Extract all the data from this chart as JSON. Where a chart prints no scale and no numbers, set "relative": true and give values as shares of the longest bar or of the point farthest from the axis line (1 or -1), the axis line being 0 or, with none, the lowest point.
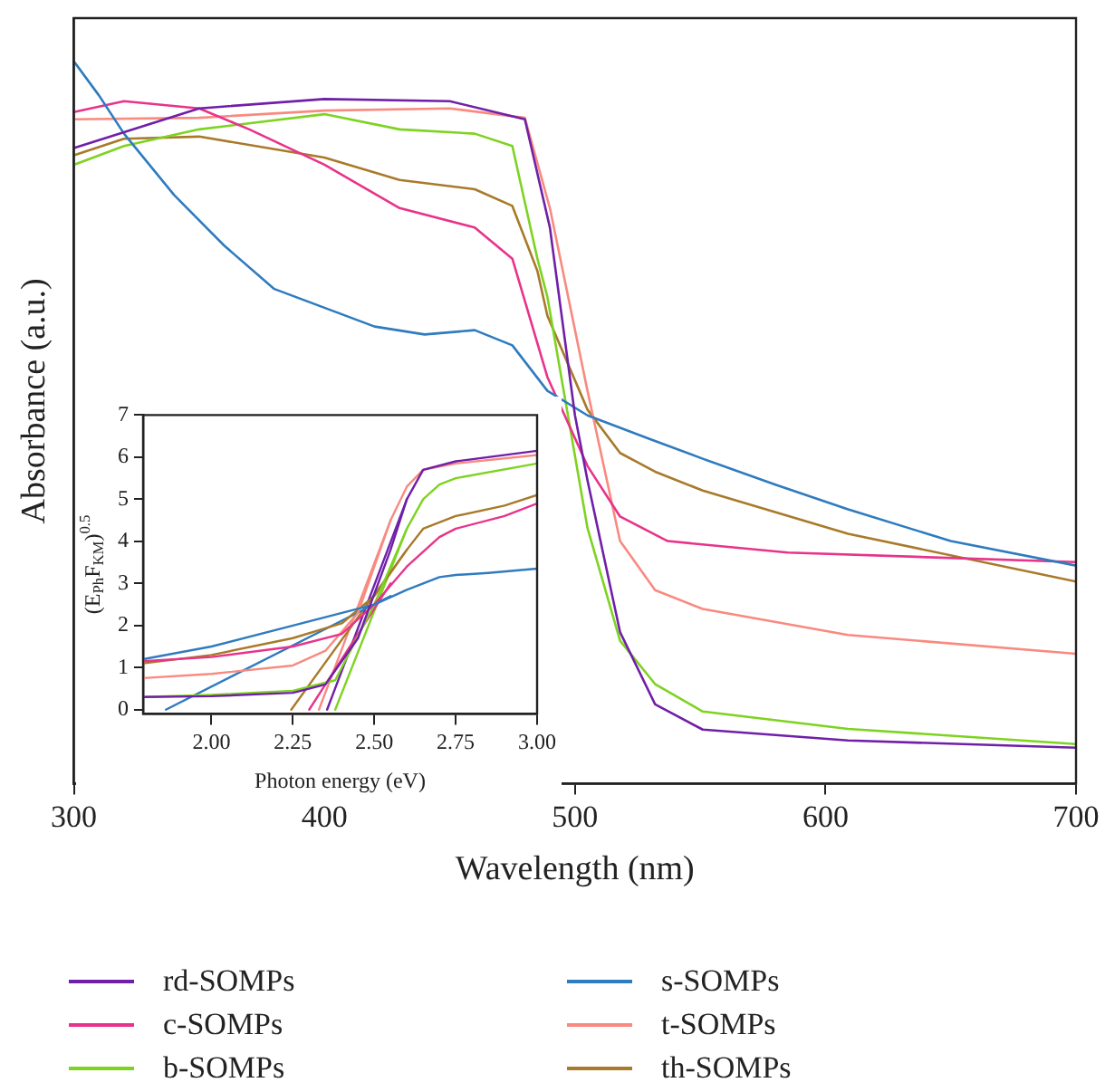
{
  "chart_data": [
    {
      "type": "line",
      "xlabel": "Wavelength (nm)",
      "ylabel": "Absorbance (a.u.)",
      "relative": true,
      "xlim": [
        300,
        700
      ],
      "xticks": [
        300,
        400,
        500,
        600,
        700
      ],
      "legend": "bottom",
      "grid": false,
      "series": [
        {
          "name": "rd-SOMPs",
          "color": "#7020a8",
          "x": [
            300,
            350,
            400,
            450,
            480,
            490,
            500,
            505,
            518,
            532,
            551,
            609,
            700
          ],
          "values": [
            0.88,
            0.935,
            0.948,
            0.945,
            0.92,
            0.77,
            0.51,
            0.42,
            0.21,
            0.11,
            0.075,
            0.06,
            0.05
          ]
        },
        {
          "name": "s-SOMPs",
          "color": "#2f7bbf",
          "x": [
            300,
            310,
            320,
            340,
            360,
            380,
            400,
            420,
            440,
            460,
            475,
            489,
            505,
            530,
            551,
            580,
            609,
            650,
            700
          ],
          "values": [
            1,
            0.953,
            0.9,
            0.815,
            0.745,
            0.685,
            0.659,
            0.633,
            0.622,
            0.628,
            0.607,
            0.544,
            0.51,
            0.477,
            0.45,
            0.414,
            0.38,
            0.336,
            0.302
          ]
        },
        {
          "name": "c-SOMPs",
          "color": "#e8338a",
          "x": [
            300,
            320,
            350,
            370,
            400,
            430,
            460,
            475,
            489,
            505,
            518,
            537,
            585,
            700
          ],
          "values": [
            0.93,
            0.945,
            0.935,
            0.906,
            0.857,
            0.797,
            0.77,
            0.727,
            0.563,
            0.44,
            0.37,
            0.336,
            0.32,
            0.307
          ]
        },
        {
          "name": "t-SOMPs",
          "color": "#f88a80",
          "x": [
            300,
            350,
            400,
            450,
            480,
            490,
            505,
            518,
            532,
            551,
            609,
            700
          ],
          "values": [
            0.92,
            0.922,
            0.932,
            0.935,
            0.922,
            0.797,
            0.544,
            0.336,
            0.268,
            0.242,
            0.206,
            0.18
          ]
        },
        {
          "name": "b-SOMPs",
          "color": "#7ed321",
          "x": [
            300,
            320,
            350,
            400,
            430,
            460,
            475,
            485,
            489,
            505,
            518,
            532,
            551,
            609,
            700
          ],
          "values": [
            0.857,
            0.883,
            0.906,
            0.927,
            0.906,
            0.9,
            0.883,
            0.727,
            0.674,
            0.354,
            0.198,
            0.138,
            0.1,
            0.076,
            0.055
          ]
        },
        {
          "name": "th-SOMPs",
          "color": "#a87a2a",
          "x": [
            300,
            320,
            350,
            400,
            430,
            460,
            475,
            485,
            489,
            505,
            518,
            532,
            551,
            609,
            700
          ],
          "values": [
            0.87,
            0.893,
            0.896,
            0.867,
            0.836,
            0.823,
            0.8,
            0.71,
            0.648,
            0.518,
            0.458,
            0.432,
            0.406,
            0.346,
            0.28
          ]
        }
      ]
    },
    {
      "type": "line",
      "xlabel": "Photon energy (eV)",
      "ylabel": "(E$_{Ph}$F$_{KM}$)$^{0.5}$",
      "xlim": [
        1.79,
        3.0
      ],
      "xticks": [
        {
          "value": 2,
          "label": "2.00"
        },
        {
          "value": 2.25,
          "label": "2.25"
        },
        {
          "value": 2.5,
          "label": "2.50"
        },
        {
          "value": 2.75,
          "label": "2.75"
        },
        {
          "value": 3,
          "label": "3.00"
        }
      ],
      "ylim": [
        -0.1,
        7
      ],
      "yticks": [
        0,
        1,
        2,
        3,
        4,
        5,
        6,
        7
      ],
      "grid": false,
      "series": [
        {
          "color": "#7020a8",
          "x": [
            1.79,
            2.0,
            2.25,
            2.35,
            2.45,
            2.55,
            2.6,
            2.65,
            2.75,
            3.0
          ],
          "values": [
            0.3,
            0.32,
            0.4,
            0.6,
            1.7,
            3.8,
            5.0,
            5.7,
            5.9,
            6.15
          ]
        },
        {
          "color": "#2f7bbf",
          "x": [
            1.79,
            2.0,
            2.25,
            2.5,
            2.6,
            2.7,
            2.75,
            2.85,
            3.0
          ],
          "values": [
            1.2,
            1.5,
            2.0,
            2.5,
            2.85,
            3.15,
            3.2,
            3.25,
            3.35
          ]
        },
        {
          "color": "#e8338a",
          "x": [
            1.79,
            2.0,
            2.25,
            2.4,
            2.5,
            2.6,
            2.7,
            2.75,
            2.9,
            3.0
          ],
          "values": [
            1.15,
            1.25,
            1.5,
            1.8,
            2.5,
            3.4,
            4.1,
            4.3,
            4.6,
            4.9
          ]
        },
        {
          "color": "#f88a80",
          "x": [
            1.79,
            2.0,
            2.25,
            2.35,
            2.45,
            2.55,
            2.6,
            2.65,
            2.75,
            3.0
          ],
          "values": [
            0.75,
            0.85,
            1.05,
            1.4,
            2.3,
            4.5,
            5.3,
            5.7,
            5.85,
            6.05
          ]
        },
        {
          "color": "#7ed321",
          "x": [
            1.79,
            2.0,
            2.25,
            2.38,
            2.5,
            2.6,
            2.65,
            2.7,
            2.75,
            3.0
          ],
          "values": [
            0.3,
            0.35,
            0.45,
            0.7,
            2.5,
            4.3,
            5.0,
            5.35,
            5.5,
            5.85
          ]
        },
        {
          "color": "#a87a2a",
          "x": [
            1.79,
            2.0,
            2.25,
            2.4,
            2.5,
            2.6,
            2.65,
            2.75,
            2.9,
            3.0
          ],
          "values": [
            1.1,
            1.3,
            1.7,
            2.05,
            2.7,
            3.8,
            4.3,
            4.6,
            4.85,
            5.1
          ]
        },
        {
          "type": "line",
          "color": "#2f7bbf",
          "x": [
            1.86,
            2.55
          ],
          "values": [
            0,
            2.7
          ]
        },
        {
          "type": "line",
          "color": "#a87a2a",
          "x": [
            2.245,
            2.6
          ],
          "values": [
            0,
            3.8
          ]
        },
        {
          "type": "line",
          "color": "#e8338a",
          "x": [
            2.3,
            2.55
          ],
          "values": [
            0,
            3.0
          ]
        },
        {
          "type": "line",
          "color": "#f88a80",
          "x": [
            2.33,
            2.55
          ],
          "values": [
            0,
            4.5
          ]
        },
        {
          "type": "line",
          "color": "#7020a8",
          "x": [
            2.355,
            2.6
          ],
          "values": [
            0,
            5.0
          ]
        },
        {
          "type": "line",
          "color": "#7ed321",
          "x": [
            2.38,
            2.6
          ],
          "values": [
            0,
            4.3
          ]
        }
      ]
    }
  ]
}
